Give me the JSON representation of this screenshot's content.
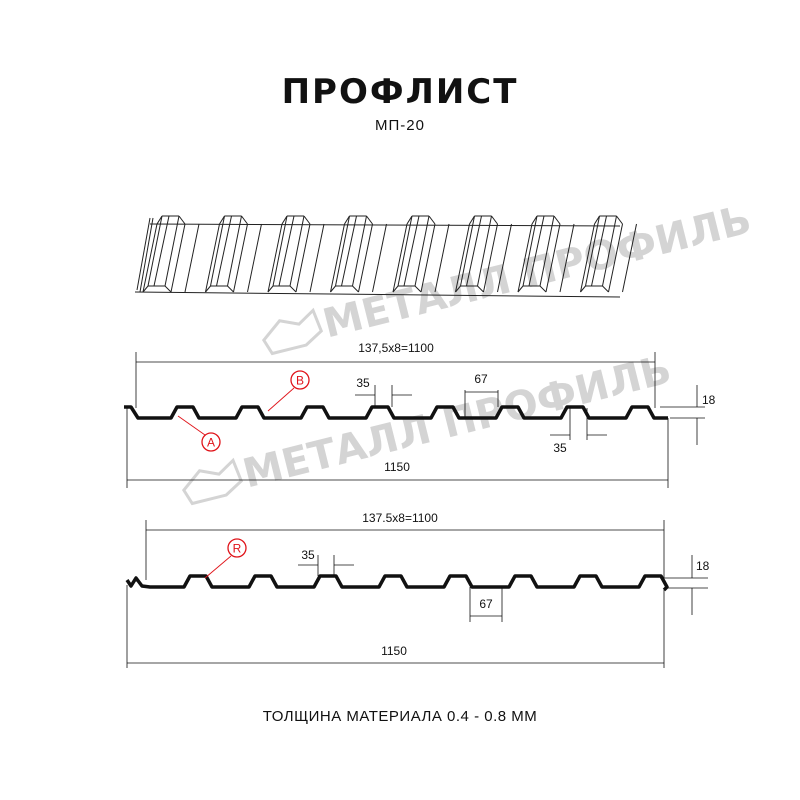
{
  "title": "ПРОФЛИСТ",
  "subtitle": "МП-20",
  "watermark": "МЕТАЛЛ ПРОФИЛЬ",
  "profile_a": {
    "pitch_label": "137,5x8=1100",
    "width_label": "1150",
    "top_width_label": "35",
    "bottom_width_label": "35",
    "rib_label": "67",
    "height_label": "18",
    "callouts": [
      "A",
      "B"
    ]
  },
  "profile_b": {
    "pitch_label": "137.5x8=1100",
    "width_label": "1150",
    "top_width_label": "35",
    "rib_label": "67",
    "height_label": "18",
    "callouts": [
      "R"
    ]
  },
  "footer": "ТОЛЩИНА МАТЕРИАЛА 0.4 - 0.8 ММ",
  "colors": {
    "callout": "#e0141a",
    "line": "#111111",
    "watermark": "#d4d4d4"
  }
}
